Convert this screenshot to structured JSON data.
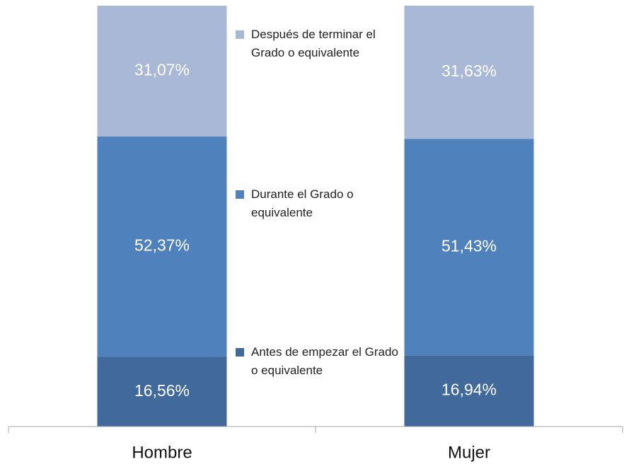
{
  "chart_data": {
    "type": "stacked_bar",
    "categories": [
      "Hombre",
      "Mujer"
    ],
    "series": [
      {
        "name": "Antes de empezar el Grado o equivalente",
        "color": "#41699b",
        "values": [
          16.56,
          16.94
        ],
        "value_labels": [
          "16,56%",
          "16,94%"
        ]
      },
      {
        "name": "Durante el Grado o equivalente",
        "color": "#4f81bd",
        "values": [
          52.37,
          51.43
        ],
        "value_labels": [
          "52,37%",
          "51,43%"
        ]
      },
      {
        "name": "Después de terminar el Grado o equivalente",
        "color": "#a9b8d6",
        "values": [
          31.07,
          31.63
        ],
        "value_labels": [
          "31,07%",
          "31,63%"
        ]
      }
    ]
  }
}
